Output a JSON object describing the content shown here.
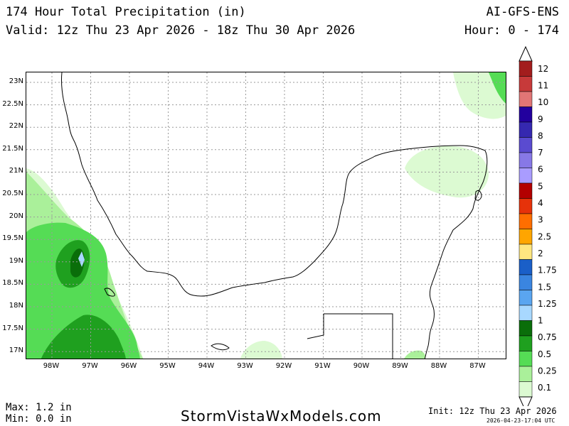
{
  "header": {
    "title": "174 Hour Total Precipitation (in)",
    "valid": "Valid: 12z Thu 23 Apr 2026 - 18z Thu 30 Apr 2026",
    "model": "AI-GFS-ENS",
    "hour_range": "Hour: 0 - 174"
  },
  "map": {
    "lat_labels": [
      "23N",
      "22.5N",
      "22N",
      "21.5N",
      "21N",
      "20.5N",
      "20N",
      "19.5N",
      "19N",
      "18.5N",
      "18N",
      "17.5N",
      "17N"
    ],
    "lon_labels": [
      "98W",
      "97W",
      "96W",
      "95W",
      "94W",
      "93W",
      "92W",
      "91W",
      "90W",
      "89W",
      "88W",
      "87W"
    ],
    "grid": true,
    "region": "Gulf of Mexico / Yucatan Peninsula"
  },
  "legend": {
    "labels": [
      "12",
      "11",
      "10",
      "9",
      "8",
      "7",
      "6",
      "5",
      "4",
      "3",
      "2.5",
      "2",
      "1.75",
      "1.5",
      "1.25",
      "1",
      "0.75",
      "0.5",
      "0.25",
      "0.1"
    ],
    "colors": [
      "#a01c1c",
      "#c83232",
      "#dc5050",
      "#e87878",
      "#2a0a9a",
      "#3c28b4",
      "#6450d2",
      "#8270e6",
      "#a898ff",
      "#b40000",
      "#e62800",
      "#ff5a00",
      "#ffa000",
      "#ffd250",
      "#ffe68c",
      "#1e64d2",
      "#3282e6",
      "#50a0f0",
      "#8cc8ff",
      "#b4dcff",
      "#0a780a",
      "#1ea01e",
      "#50d250",
      "#96eb8c",
      "#d2f8c8"
    ],
    "swatches": [
      {
        "label": "12",
        "color": "#a31d1d"
      },
      {
        "label": "11",
        "color": "#c73a3a"
      },
      {
        "label": "10",
        "color": "#e17575"
      },
      {
        "label": "9",
        "color": "#22009e"
      },
      {
        "label": "8",
        "color": "#3528b0"
      },
      {
        "label": "7",
        "color": "#5a4bd0"
      },
      {
        "label": "6",
        "color": "#8778e6"
      },
      {
        "label": "5",
        "color": "#a99cff"
      },
      {
        "label": "4",
        "color": "#b30000"
      },
      {
        "label": "3",
        "color": "#e6320a"
      },
      {
        "label": "2.5",
        "color": "#ff6e00"
      },
      {
        "label": "2",
        "color": "#ffa500"
      },
      {
        "label": "1.75",
        "color": "#ffe680"
      },
      {
        "label": "1.5",
        "color": "#1a5fc8"
      },
      {
        "label": "1.25",
        "color": "#3a85e0"
      },
      {
        "label": "1",
        "color": "#5aa5f0"
      },
      {
        "label": "0.75",
        "color": "#a8d8ff"
      },
      {
        "label": "0.5",
        "color": "#0a6e0a"
      },
      {
        "label": "0.25",
        "color": "#1fa01f"
      },
      {
        "label": "0.1",
        "color": "#55dc55"
      },
      {
        "label": "",
        "color": "#aaf09a"
      },
      {
        "label": "",
        "color": "#dcfad2"
      }
    ]
  },
  "footer": {
    "max": "Max: 1.2 in",
    "min": "Min: 0.0 in",
    "site": "StormVistaWxModels.com",
    "init": "Init: 12z Thu 23 Apr 2026",
    "stamp": "2026-04-23-17:04 UTC"
  }
}
